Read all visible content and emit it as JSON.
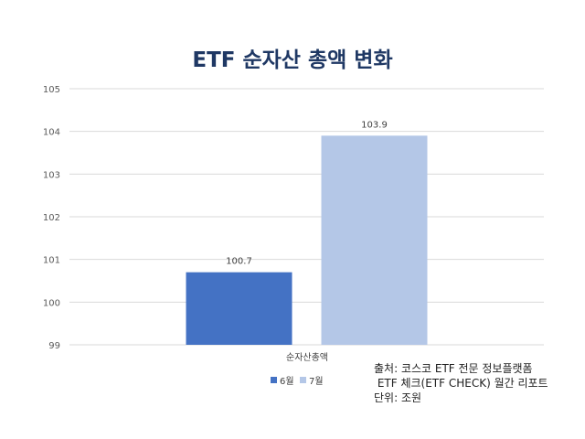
{
  "chart_data": {
    "type": "bar",
    "title": "ETF 순자산 총액 변화",
    "categories": [
      "순자산총액"
    ],
    "series": [
      {
        "name": "6월",
        "values": [
          100.7
        ],
        "color": "#4472c4"
      },
      {
        "name": "7월",
        "values": [
          103.9
        ],
        "color": "#b4c7e7"
      }
    ],
    "ylim": [
      99,
      105
    ],
    "yticks": [
      99,
      100,
      101,
      102,
      103,
      104,
      105
    ],
    "grid": true,
    "legend": "bottom"
  },
  "source": {
    "line1": "출처: 코스코 ETF 전문 정보플랫폼",
    "line2": " ETF 체크(ETF CHECK) 월간 리포트",
    "line3": "단위: 조원"
  }
}
